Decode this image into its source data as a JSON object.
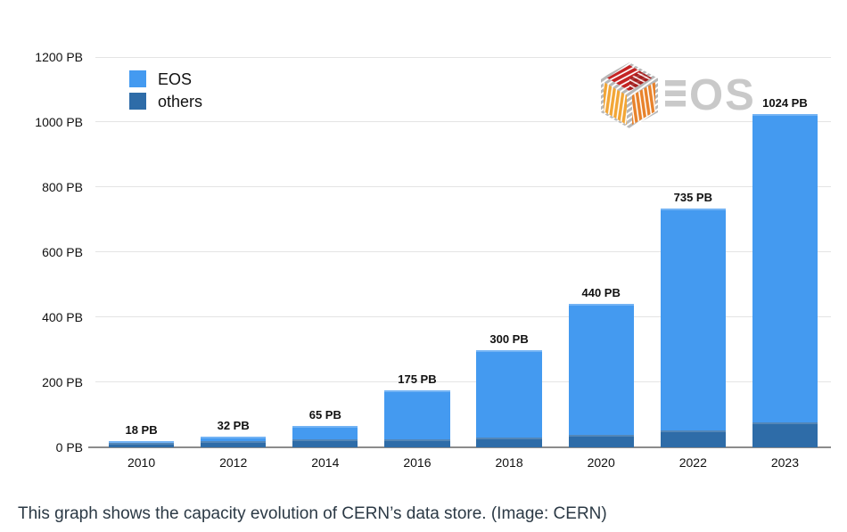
{
  "caption": "This graph shows the capacity evolution of CERN’s data store. (Image: CERN)",
  "logo": {
    "name": "eos-logo",
    "text": "OS",
    "equals_icon": "triple-bar",
    "text_color": "#c9c9c9"
  },
  "style": {
    "grid_color": "#e4e4e4",
    "axis_color": "#8c8c8c",
    "text_color": "#111111",
    "caption_color": "#2b3945",
    "background": "#ffffff"
  },
  "chart_data": {
    "type": "bar",
    "stacked": true,
    "title": "",
    "xlabel": "",
    "ylabel": "",
    "categories": [
      "2010",
      "2012",
      "2014",
      "2016",
      "2018",
      "2020",
      "2022",
      "2023"
    ],
    "series": [
      {
        "name": "others",
        "color": "#2e6ca8",
        "values": [
          15,
          20,
          25,
          25,
          30,
          38,
          52,
          78
        ]
      },
      {
        "name": "EOS",
        "color": "#449af0",
        "values": [
          3,
          12,
          40,
          150,
          270,
          402,
          683,
          946
        ]
      }
    ],
    "totals": [
      18,
      32,
      65,
      175,
      300,
      440,
      735,
      1024
    ],
    "bar_labels": [
      "18 PB",
      "32 PB",
      "65 PB",
      "175 PB",
      "300 PB",
      "440 PB",
      "735 PB",
      "1024 PB"
    ],
    "ylim": [
      0,
      1200
    ],
    "yticks": [
      0,
      200,
      400,
      600,
      800,
      1000,
      1200
    ],
    "ytick_labels": [
      "0 PB",
      "200 PB",
      "400 PB",
      "600 PB",
      "800 PB",
      "1000 PB",
      "1200 PB"
    ],
    "grid": true,
    "legend_position": "top-left",
    "legend": [
      {
        "label": "EOS",
        "color": "#449af0"
      },
      {
        "label": "others",
        "color": "#2e6ca8"
      }
    ]
  }
}
